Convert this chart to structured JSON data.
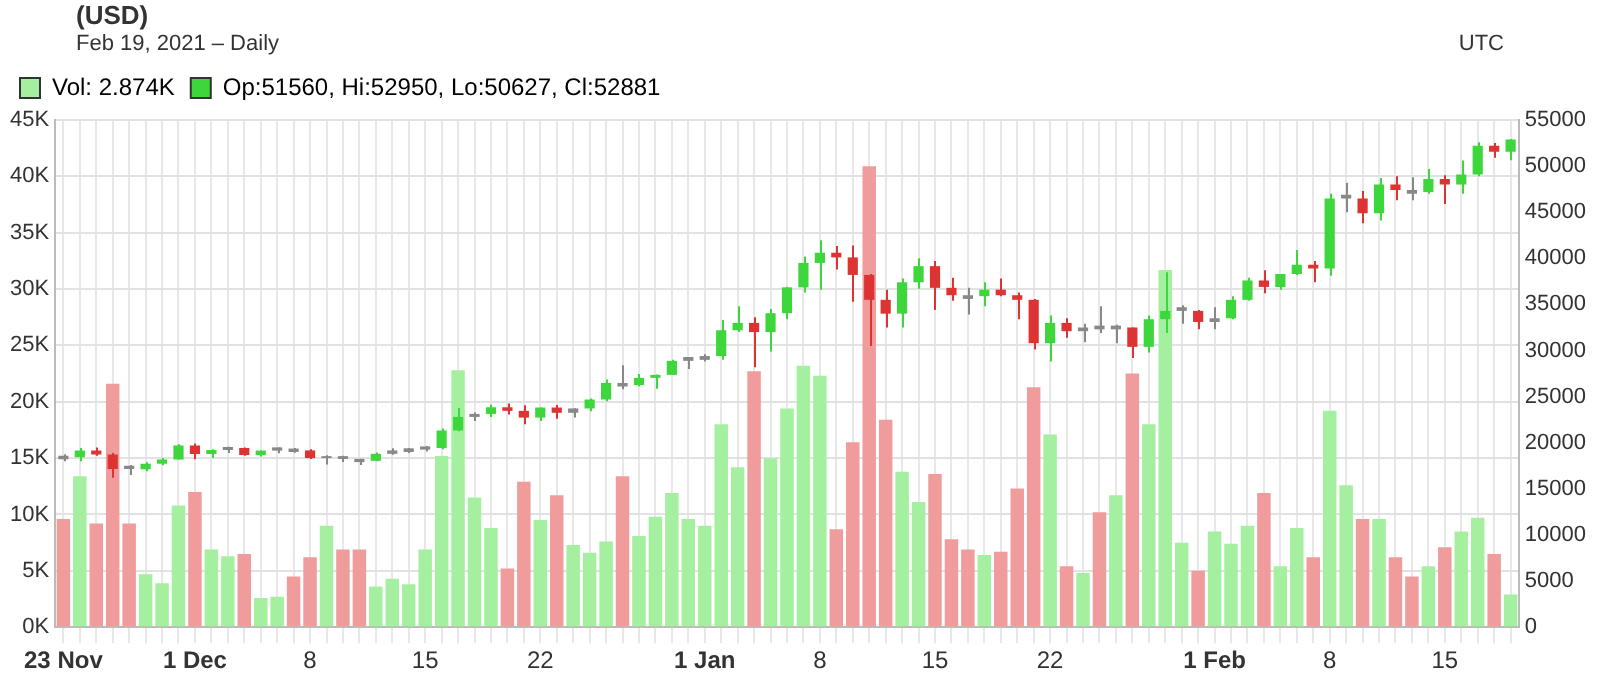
{
  "chart_data": {
    "type": "candlestick",
    "title": "(USD)",
    "subtitle": "Feb 19, 2021 – Daily",
    "annotations": [
      "UTC"
    ],
    "categories": [
      "23 Nov",
      null,
      null,
      null,
      null,
      null,
      null,
      null,
      "1 Dec",
      null,
      null,
      null,
      null,
      null,
      null,
      "8",
      null,
      null,
      null,
      null,
      null,
      null,
      "15",
      null,
      null,
      null,
      null,
      null,
      null,
      "22",
      null,
      null,
      null,
      null,
      null,
      null,
      null,
      null,
      null,
      "1 Jan",
      null,
      null,
      null,
      null,
      null,
      null,
      "8",
      null,
      null,
      null,
      null,
      null,
      null,
      "15",
      null,
      null,
      null,
      null,
      null,
      null,
      "22",
      null,
      null,
      null,
      null,
      null,
      null,
      null,
      null,
      null,
      "1 Feb",
      null,
      null,
      null,
      null,
      null,
      null,
      "8",
      null,
      null,
      null,
      null,
      null,
      null,
      "15",
      null,
      null,
      null,
      null
    ],
    "series": [
      {
        "type": "bar",
        "name": "Vol: 2.874K",
        "color": "#a4f0a0",
        "values": [
          9600,
          13400,
          9200,
          21600,
          9200,
          4700,
          3900,
          10800,
          12000,
          6900,
          6300,
          6500,
          2600,
          2700,
          4500,
          6200,
          9000,
          6900,
          6900,
          3600,
          4300,
          3800,
          6900,
          15200,
          22800,
          11500,
          8800,
          5200,
          12900,
          9500,
          11700,
          7300,
          6600,
          7600,
          13400,
          8100,
          9800,
          11900,
          9600,
          9000,
          18000,
          14200,
          22700,
          15000,
          19400,
          23200,
          22300,
          8700,
          16400,
          40900,
          18400,
          13800,
          11100,
          13600,
          7800,
          6900,
          6400,
          6700,
          12300,
          21300,
          17100,
          5400,
          4800,
          10200,
          11700,
          22500,
          18000,
          31700,
          7500,
          5000,
          8500,
          7400,
          9000,
          11900,
          5400,
          8800,
          6200,
          19200,
          12600,
          9600,
          9600,
          6200,
          4500,
          5400,
          7100,
          8500,
          9700,
          6500,
          2900
        ],
        "colors": [
          "#f09c9c",
          "#a4f0a0",
          "#f09c9c",
          "#f09c9c",
          "#f09c9c",
          "#a4f0a0",
          "#a4f0a0",
          "#a4f0a0",
          "#f09c9c",
          "#a4f0a0",
          "#a4f0a0",
          "#f09c9c",
          "#a4f0a0",
          "#a4f0a0",
          "#f09c9c",
          "#f09c9c",
          "#a4f0a0",
          "#f09c9c",
          "#f09c9c",
          "#a4f0a0",
          "#a4f0a0",
          "#a4f0a0",
          "#a4f0a0",
          "#a4f0a0",
          "#a4f0a0",
          "#a4f0a0",
          "#a4f0a0",
          "#f09c9c",
          "#f09c9c",
          "#a4f0a0",
          "#f09c9c",
          "#a4f0a0",
          "#a4f0a0",
          "#a4f0a0",
          "#f09c9c",
          "#a4f0a0",
          "#a4f0a0",
          "#a4f0a0",
          "#a4f0a0",
          "#a4f0a0",
          "#a4f0a0",
          "#a4f0a0",
          "#f09c9c",
          "#a4f0a0",
          "#a4f0a0",
          "#a4f0a0",
          "#a4f0a0",
          "#f09c9c",
          "#f09c9c",
          "#f09c9c",
          "#f09c9c",
          "#a4f0a0",
          "#a4f0a0",
          "#f09c9c",
          "#f09c9c",
          "#f09c9c",
          "#a4f0a0",
          "#f09c9c",
          "#f09c9c",
          "#f09c9c",
          "#a4f0a0",
          "#f09c9c",
          "#a4f0a0",
          "#f09c9c",
          "#a4f0a0",
          "#f09c9c",
          "#a4f0a0",
          "#a4f0a0",
          "#a4f0a0",
          "#f09c9c",
          "#a4f0a0",
          "#a4f0a0",
          "#a4f0a0",
          "#f09c9c",
          "#a4f0a0",
          "#a4f0a0",
          "#f09c9c",
          "#a4f0a0",
          "#a4f0a0",
          "#f09c9c",
          "#a4f0a0",
          "#f09c9c",
          "#f09c9c",
          "#a4f0a0",
          "#f09c9c",
          "#a4f0a0",
          "#a4f0a0",
          "#f09c9c",
          "#a4f0a0"
        ]
      },
      {
        "name": "Op:51560, Hi:52950, Lo:50627, Cl:52881",
        "axis": "y2",
        "color": "#3dd63d",
        "colors": [
          "#888888",
          "#3dd63d",
          "#dd3333",
          "#dd3333",
          "#888888",
          "#3dd63d",
          "#3dd63d",
          "#3dd63d",
          "#dd3333",
          "#3dd63d",
          "#888888",
          "#dd3333",
          "#3dd63d",
          "#888888",
          "#888888",
          "#dd3333",
          "#888888",
          "#888888",
          "#888888",
          "#3dd63d",
          "#888888",
          "#888888",
          "#888888",
          "#3dd63d",
          "#3dd63d",
          "#888888",
          "#3dd63d",
          "#dd3333",
          "#dd3333",
          "#3dd63d",
          "#dd3333",
          "#888888",
          "#3dd63d",
          "#3dd63d",
          "#888888",
          "#3dd63d",
          "#3dd63d",
          "#3dd63d",
          "#888888",
          "#888888",
          "#3dd63d",
          "#3dd63d",
          "#dd3333",
          "#3dd63d",
          "#3dd63d",
          "#3dd63d",
          "#3dd63d",
          "#dd3333",
          "#dd3333",
          "#dd3333",
          "#dd3333",
          "#3dd63d",
          "#3dd63d",
          "#dd3333",
          "#dd3333",
          "#888888",
          "#3dd63d",
          "#dd3333",
          "#dd3333",
          "#dd3333",
          "#3dd63d",
          "#dd3333",
          "#888888",
          "#888888",
          "#888888",
          "#dd3333",
          "#3dd63d",
          "#3dd63d",
          "#888888",
          "#dd3333",
          "#888888",
          "#3dd63d",
          "#3dd63d",
          "#dd3333",
          "#3dd63d",
          "#3dd63d",
          "#dd3333",
          "#3dd63d",
          "#888888",
          "#dd3333",
          "#3dd63d",
          "#dd3333",
          "#888888",
          "#3dd63d",
          "#dd3333",
          "#3dd63d",
          "#3dd63d",
          "#dd3333",
          "#3dd63d"
        ],
        "ohlc": [
          [
            18200,
            18760,
            18000,
            18600
          ],
          [
            18420,
            19420,
            18000,
            19160
          ],
          [
            19160,
            19490,
            18580,
            18730
          ],
          [
            18730,
            18900,
            16200,
            17150
          ],
          [
            17150,
            17600,
            16500,
            17500
          ],
          [
            17140,
            17900,
            16900,
            17720
          ],
          [
            17720,
            18350,
            17560,
            18180
          ],
          [
            18180,
            19850,
            18180,
            19700
          ],
          [
            19700,
            19920,
            18200,
            18780
          ],
          [
            18780,
            19300,
            18350,
            19220
          ],
          [
            19220,
            19580,
            18900,
            19550
          ],
          [
            19430,
            19500,
            18580,
            18660
          ],
          [
            18660,
            19160,
            18500,
            19150
          ],
          [
            19150,
            19500,
            18860,
            19500
          ],
          [
            19370,
            19430,
            18910,
            19000
          ],
          [
            19170,
            19290,
            18230,
            18340
          ],
          [
            18340,
            18650,
            17650,
            18550
          ],
          [
            18550,
            18580,
            17920,
            18250
          ],
          [
            18250,
            18270,
            17580,
            17900
          ],
          [
            18040,
            18950,
            18000,
            18800
          ],
          [
            18800,
            19400,
            18700,
            19170
          ],
          [
            19000,
            19400,
            18900,
            19400
          ],
          [
            19260,
            19650,
            19050,
            19600
          ],
          [
            19430,
            21560,
            19300,
            21330
          ],
          [
            21330,
            23780,
            21240,
            22800
          ],
          [
            22800,
            23280,
            22350,
            23130
          ],
          [
            23130,
            24150,
            22800,
            23850
          ],
          [
            23850,
            24270,
            23060,
            23460
          ],
          [
            23460,
            24080,
            22020,
            22730
          ],
          [
            22730,
            23830,
            22370,
            23820
          ],
          [
            23820,
            24100,
            22600,
            23250
          ],
          [
            23250,
            23750,
            22750,
            23720
          ],
          [
            23720,
            24800,
            23420,
            24690
          ],
          [
            24690,
            26850,
            24500,
            26480
          ],
          [
            26480,
            28400,
            25800,
            26100
          ],
          [
            26260,
            27460,
            26120,
            27040
          ],
          [
            27040,
            27400,
            25860,
            27360
          ],
          [
            27360,
            28990,
            27340,
            28880
          ],
          [
            28880,
            29300,
            28000,
            29300
          ],
          [
            28990,
            29600,
            28800,
            29400
          ],
          [
            29400,
            33300,
            29000,
            32200
          ],
          [
            32200,
            34800,
            32000,
            33000
          ],
          [
            33000,
            33600,
            28200,
            32000
          ],
          [
            32000,
            34500,
            29900,
            34050
          ],
          [
            34050,
            36900,
            33400,
            36850
          ],
          [
            36850,
            40200,
            36300,
            39500
          ],
          [
            39500,
            41950,
            36600,
            40600
          ],
          [
            40600,
            41350,
            38800,
            40100
          ],
          [
            40100,
            41400,
            35300,
            38200
          ],
          [
            38200,
            38300,
            30500,
            35500
          ],
          [
            35500,
            36600,
            32500,
            34000
          ],
          [
            34000,
            37800,
            32500,
            37400
          ],
          [
            37400,
            40000,
            36700,
            39150
          ],
          [
            39150,
            39700,
            34400,
            36800
          ],
          [
            36800,
            37900,
            35400,
            36000
          ],
          [
            36000,
            36800,
            33900,
            35600
          ],
          [
            35900,
            37400,
            34800,
            36600
          ],
          [
            36600,
            37800,
            35900,
            36000
          ],
          [
            36000,
            36300,
            33400,
            35500
          ],
          [
            35500,
            35600,
            30100,
            30800
          ],
          [
            30800,
            33800,
            28800,
            33000
          ],
          [
            33000,
            33500,
            31400,
            32100
          ],
          [
            32100,
            32900,
            30900,
            32500
          ],
          [
            32300,
            34800,
            31900,
            32700
          ],
          [
            32300,
            32800,
            30800,
            32700
          ],
          [
            32500,
            32500,
            29200,
            30400
          ],
          [
            30400,
            33800,
            29800,
            33400
          ],
          [
            33400,
            38500,
            31900,
            34300
          ],
          [
            34300,
            34900,
            32900,
            34700
          ],
          [
            34300,
            34400,
            32300,
            33100
          ],
          [
            33100,
            34700,
            32300,
            33500
          ],
          [
            33500,
            35900,
            33400,
            35500
          ],
          [
            35500,
            37900,
            35400,
            37600
          ],
          [
            37600,
            38700,
            36200,
            36900
          ],
          [
            36900,
            38300,
            36600,
            38300
          ],
          [
            38300,
            40900,
            38200,
            39300
          ],
          [
            39300,
            39700,
            37400,
            38900
          ],
          [
            38900,
            47000,
            38100,
            46500
          ],
          [
            46500,
            48200,
            45000,
            46900
          ],
          [
            46500,
            47300,
            43800,
            44900
          ],
          [
            44900,
            48700,
            44100,
            48000
          ],
          [
            48000,
            48900,
            46300,
            47400
          ],
          [
            47400,
            48800,
            46300,
            47000
          ],
          [
            47200,
            49700,
            47000,
            48600
          ],
          [
            48600,
            49000,
            45900,
            48000
          ],
          [
            48000,
            50600,
            47000,
            49100
          ],
          [
            49100,
            52600,
            48900,
            52200
          ],
          [
            52200,
            52500,
            50900,
            51560
          ],
          [
            51560,
            52950,
            50627,
            52881
          ]
        ]
      }
    ],
    "ylim": [
      0,
      45000
    ],
    "yticks": [
      {
        "value": 0,
        "label": "0K"
      },
      {
        "value": 5000,
        "label": "5K"
      },
      {
        "value": 10000,
        "label": "10K"
      },
      {
        "value": 15000,
        "label": "15K"
      },
      {
        "value": 20000,
        "label": "20K"
      },
      {
        "value": 25000,
        "label": "25K"
      },
      {
        "value": 30000,
        "label": "30K"
      },
      {
        "value": 35000,
        "label": "35K"
      },
      {
        "value": 40000,
        "label": "40K"
      },
      {
        "value": 45000,
        "label": "45K"
      }
    ],
    "y2lim": [
      0,
      55000
    ],
    "y2ticks": [
      0,
      5000,
      10000,
      15000,
      20000,
      25000,
      30000,
      35000,
      40000,
      45000,
      50000,
      55000
    ],
    "grid": true,
    "legend": "top left"
  }
}
